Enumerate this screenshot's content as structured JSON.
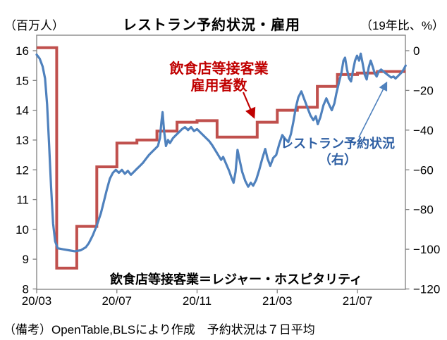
{
  "header": {
    "left_unit": "（百万人）",
    "title": "レストラン予約状況・雇用",
    "right_unit": "（19年比、%）"
  },
  "annotations": {
    "employment_line1": "飲食店等接客業",
    "employment_line2": "雇用者数",
    "reservation_line1": "レストラン予約状況",
    "reservation_line2": "（右）",
    "plot_note": "飲食店等接客業＝レジャー・ホスピタリティ"
  },
  "footer": {
    "note": "（備考）OpenTable,BLSにより作成　予約状況は７日平均"
  },
  "colors": {
    "employment_line": "#C0504D",
    "reservation_line": "#4F81BD",
    "employment_text": "#C00000",
    "reservation_text": "#2E5FA3",
    "axis": "#7F7F7F",
    "text": "#000000",
    "background": "#FFFFFF"
  },
  "chart_data": {
    "type": "line",
    "title": "レストラン予約状況・雇用",
    "grid": false,
    "legend": "in-plot text annotations with arrows",
    "left_axis": {
      "unit": "百万人",
      "ylim": [
        8,
        16
      ],
      "ticks": [
        16,
        15,
        14,
        13,
        12,
        11,
        10,
        9,
        8
      ],
      "tick_labels": [
        "16",
        "15",
        "14",
        "13",
        "12",
        "11",
        "10",
        "9",
        "8"
      ]
    },
    "right_axis": {
      "unit": "19年比、%",
      "ylim": [
        -120,
        0
      ],
      "ticks": [
        0,
        -20,
        -40,
        -60,
        -80,
        -100,
        -120
      ],
      "tick_labels": [
        "0",
        "−20",
        "−40",
        "−60",
        "−80",
        "−100",
        "−120"
      ]
    },
    "x_axis": {
      "tick_labels": [
        "20/03",
        "20/07",
        "20/11",
        "21/03",
        "21/07"
      ],
      "tick_months": [
        0,
        4,
        8,
        12,
        16
      ],
      "range_months": [
        0,
        18.4
      ],
      "note": "month 0 = 2020/03"
    },
    "series": [
      {
        "name": "飲食店等接客業雇用者数",
        "axis": "left",
        "style": "step",
        "unit": "百万人",
        "months": [
          "2020-03",
          "2020-04",
          "2020-05",
          "2020-06",
          "2020-07",
          "2020-08",
          "2020-09",
          "2020-10",
          "2020-11",
          "2020-12",
          "2021-01",
          "2021-02",
          "2021-03",
          "2021-04",
          "2021-05",
          "2021-06",
          "2021-07",
          "2021-08"
        ],
        "values": [
          16.1,
          8.7,
          10.1,
          12.1,
          12.9,
          13.0,
          13.3,
          13.6,
          13.65,
          13.1,
          13.1,
          13.6,
          14.0,
          14.1,
          14.8,
          15.2,
          15.25,
          15.3
        ]
      },
      {
        "name": "レストラン予約状況（右）",
        "axis": "right",
        "style": "line",
        "unit": "%",
        "points_month_value": [
          [
            0,
            -2
          ],
          [
            0.15,
            -4
          ],
          [
            0.3,
            -8
          ],
          [
            0.42,
            -14
          ],
          [
            0.52,
            -27
          ],
          [
            0.62,
            -47
          ],
          [
            0.72,
            -69
          ],
          [
            0.82,
            -87
          ],
          [
            0.92,
            -96
          ],
          [
            1.05,
            -99.5
          ],
          [
            1.3,
            -100
          ],
          [
            1.6,
            -100.5
          ],
          [
            1.9,
            -101
          ],
          [
            2.2,
            -100.5
          ],
          [
            2.45,
            -99
          ],
          [
            2.6,
            -97
          ],
          [
            2.8,
            -93
          ],
          [
            3.0,
            -88
          ],
          [
            3.2,
            -82
          ],
          [
            3.35,
            -76
          ],
          [
            3.5,
            -70
          ],
          [
            3.65,
            -64.5
          ],
          [
            3.8,
            -61.5
          ],
          [
            3.95,
            -60
          ],
          [
            4.1,
            -61.5
          ],
          [
            4.25,
            -60
          ],
          [
            4.4,
            -62
          ],
          [
            4.55,
            -60.5
          ],
          [
            4.7,
            -62.5
          ],
          [
            4.85,
            -61
          ],
          [
            5.0,
            -59.5
          ],
          [
            5.15,
            -58
          ],
          [
            5.3,
            -56.5
          ],
          [
            5.45,
            -54.5
          ],
          [
            5.6,
            -52.5
          ],
          [
            5.75,
            -51
          ],
          [
            5.9,
            -49.5
          ],
          [
            6.05,
            -48
          ],
          [
            6.15,
            -44
          ],
          [
            6.22,
            -36
          ],
          [
            6.28,
            -31
          ],
          [
            6.35,
            -40
          ],
          [
            6.45,
            -48
          ],
          [
            6.55,
            -45
          ],
          [
            6.65,
            -46.5
          ],
          [
            6.8,
            -44
          ],
          [
            6.95,
            -42.5
          ],
          [
            7.1,
            -41
          ],
          [
            7.25,
            -39.5
          ],
          [
            7.4,
            -38.5
          ],
          [
            7.55,
            -40
          ],
          [
            7.7,
            -38.5
          ],
          [
            7.85,
            -40.5
          ],
          [
            8.0,
            -39.5
          ],
          [
            8.15,
            -41
          ],
          [
            8.3,
            -42.5
          ],
          [
            8.45,
            -44
          ],
          [
            8.6,
            -45.5
          ],
          [
            8.75,
            -47.5
          ],
          [
            8.9,
            -50
          ],
          [
            9.05,
            -52.5
          ],
          [
            9.2,
            -55
          ],
          [
            9.3,
            -53.5
          ],
          [
            9.45,
            -57
          ],
          [
            9.6,
            -60.5
          ],
          [
            9.72,
            -64
          ],
          [
            9.82,
            -66.5
          ],
          [
            9.92,
            -61
          ],
          [
            10.02,
            -50
          ],
          [
            10.12,
            -55
          ],
          [
            10.25,
            -61
          ],
          [
            10.4,
            -65.5
          ],
          [
            10.55,
            -68.5
          ],
          [
            10.68,
            -66.5
          ],
          [
            10.8,
            -68
          ],
          [
            10.95,
            -65
          ],
          [
            11.1,
            -60
          ],
          [
            11.25,
            -54.5
          ],
          [
            11.4,
            -49.5
          ],
          [
            11.52,
            -54.5
          ],
          [
            11.65,
            -58
          ],
          [
            11.8,
            -54
          ],
          [
            11.95,
            -52.5
          ],
          [
            12.1,
            -47
          ],
          [
            12.25,
            -42.5
          ],
          [
            12.4,
            -44.5
          ],
          [
            12.55,
            -46
          ],
          [
            12.68,
            -42
          ],
          [
            12.8,
            -36
          ],
          [
            12.92,
            -29
          ],
          [
            13.05,
            -23.5
          ],
          [
            13.2,
            -20.5
          ],
          [
            13.35,
            -24.5
          ],
          [
            13.5,
            -28.5
          ],
          [
            13.65,
            -32.5
          ],
          [
            13.8,
            -35
          ],
          [
            13.92,
            -33
          ],
          [
            14.02,
            -37
          ],
          [
            14.15,
            -33.5
          ],
          [
            14.3,
            -27.5
          ],
          [
            14.45,
            -24
          ],
          [
            14.6,
            -27.5
          ],
          [
            14.72,
            -30
          ],
          [
            14.85,
            -26.5
          ],
          [
            14.95,
            -21.5
          ],
          [
            15.08,
            -16
          ],
          [
            15.2,
            -11
          ],
          [
            15.3,
            -5
          ],
          [
            15.38,
            -3.5
          ],
          [
            15.48,
            -9.5
          ],
          [
            15.58,
            -14
          ],
          [
            15.68,
            -15.5
          ],
          [
            15.78,
            -10
          ],
          [
            15.88,
            -5
          ],
          [
            15.98,
            -2.5
          ],
          [
            16.08,
            -5
          ],
          [
            16.16,
            -1.5
          ],
          [
            16.26,
            -6.5
          ],
          [
            16.36,
            -12
          ],
          [
            16.46,
            -14.5
          ],
          [
            16.56,
            -8.5
          ],
          [
            16.66,
            -5
          ],
          [
            16.76,
            -8
          ],
          [
            16.86,
            -11.5
          ],
          [
            16.96,
            -13
          ],
          [
            17.06,
            -10.5
          ],
          [
            17.18,
            -9.5
          ],
          [
            17.3,
            -10.5
          ],
          [
            17.42,
            -11.5
          ],
          [
            17.55,
            -12.5
          ],
          [
            17.68,
            -13.5
          ],
          [
            17.8,
            -13
          ],
          [
            17.9,
            -14
          ],
          [
            18.0,
            -13
          ],
          [
            18.1,
            -12
          ],
          [
            18.2,
            -11
          ],
          [
            18.3,
            -9.5
          ],
          [
            18.4,
            -7.5
          ]
        ]
      }
    ]
  }
}
